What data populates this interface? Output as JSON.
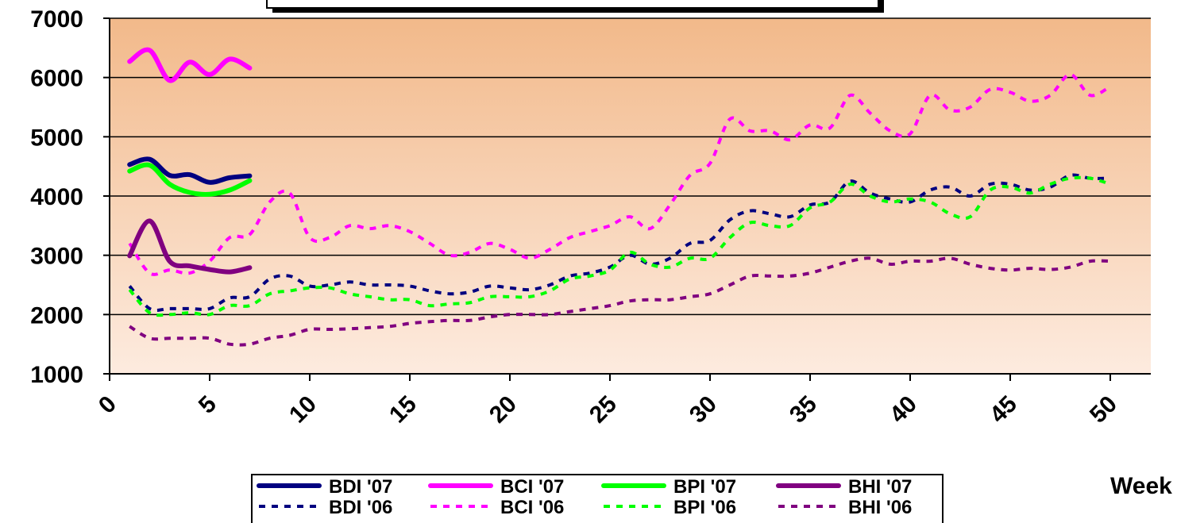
{
  "chart_data": {
    "type": "line",
    "title": "",
    "xlabel": "Week",
    "ylabel": "",
    "xlim": [
      0,
      52
    ],
    "ylim": [
      1000,
      7000
    ],
    "x_ticks": [
      "0",
      "5",
      "10",
      "15",
      "20",
      "25",
      "30",
      "35",
      "40",
      "45",
      "50"
    ],
    "y_ticks": [
      "1000",
      "2000",
      "3000",
      "4000",
      "5000",
      "6000",
      "7000"
    ],
    "grid": "horizontal",
    "legend_position": "bottom",
    "series": [
      {
        "name": "BDI '07",
        "color": "#000080",
        "style": "solid",
        "x": [
          1,
          2,
          3,
          4,
          5,
          6,
          7
        ],
        "y": [
          4530,
          4620,
          4350,
          4360,
          4230,
          4310,
          4340
        ]
      },
      {
        "name": "BCI '07",
        "color": "#ff00ff",
        "style": "solid",
        "x": [
          1,
          2,
          3,
          4,
          5,
          6,
          7
        ],
        "y": [
          6270,
          6460,
          5950,
          6260,
          6050,
          6310,
          6160
        ]
      },
      {
        "name": "BPI '07",
        "color": "#00ff00",
        "style": "solid",
        "x": [
          1,
          2,
          3,
          4,
          5,
          6,
          7
        ],
        "y": [
          4420,
          4520,
          4200,
          4060,
          4030,
          4100,
          4260
        ]
      },
      {
        "name": "BHI '07",
        "color": "#800080",
        "style": "solid",
        "x": [
          1,
          2,
          3,
          4,
          5,
          6,
          7
        ],
        "y": [
          2990,
          3580,
          2900,
          2820,
          2760,
          2720,
          2790
        ]
      },
      {
        "name": "BDI '06",
        "color": "#000080",
        "style": "dashed",
        "x": [
          1,
          2,
          3,
          4,
          5,
          6,
          7,
          8,
          9,
          10,
          11,
          12,
          13,
          14,
          15,
          16,
          17,
          18,
          19,
          20,
          21,
          22,
          23,
          24,
          25,
          26,
          27,
          28,
          29,
          30,
          31,
          32,
          33,
          34,
          35,
          36,
          37,
          38,
          39,
          40,
          41,
          42,
          43,
          44,
          45,
          46,
          47,
          48,
          49,
          50
        ],
        "y": [
          2480,
          2100,
          2100,
          2100,
          2100,
          2280,
          2300,
          2600,
          2650,
          2480,
          2500,
          2550,
          2500,
          2500,
          2480,
          2400,
          2350,
          2380,
          2480,
          2450,
          2420,
          2500,
          2650,
          2700,
          2800,
          3000,
          2850,
          2950,
          3200,
          3250,
          3600,
          3750,
          3700,
          3650,
          3850,
          3900,
          4250,
          4050,
          3950,
          3900,
          4100,
          4150,
          4000,
          4200,
          4200,
          4100,
          4150,
          4350,
          4300,
          4300
        ]
      },
      {
        "name": "BCI '06",
        "color": "#ff00ff",
        "style": "dashed",
        "x": [
          1,
          2,
          3,
          4,
          5,
          6,
          7,
          8,
          9,
          10,
          11,
          12,
          13,
          14,
          15,
          16,
          17,
          18,
          19,
          20,
          21,
          22,
          23,
          24,
          25,
          26,
          27,
          28,
          29,
          30,
          31,
          32,
          33,
          34,
          35,
          36,
          37,
          38,
          39,
          40,
          41,
          42,
          43,
          44,
          45,
          46,
          47,
          48,
          49,
          50
        ],
        "y": [
          3200,
          2700,
          2750,
          2700,
          2900,
          3300,
          3350,
          3900,
          4050,
          3300,
          3300,
          3500,
          3450,
          3500,
          3400,
          3200,
          3000,
          3050,
          3200,
          3100,
          2950,
          3100,
          3300,
          3400,
          3500,
          3650,
          3450,
          3850,
          4350,
          4550,
          5300,
          5100,
          5100,
          4950,
          5200,
          5150,
          5700,
          5400,
          5100,
          5050,
          5700,
          5450,
          5500,
          5800,
          5750,
          5600,
          5700,
          6050,
          5700,
          5850
        ]
      },
      {
        "name": "BPI '06",
        "color": "#00ff00",
        "style": "dashed",
        "x": [
          1,
          2,
          3,
          4,
          5,
          6,
          7,
          8,
          9,
          10,
          11,
          12,
          13,
          14,
          15,
          16,
          17,
          18,
          19,
          20,
          21,
          22,
          23,
          24,
          25,
          26,
          27,
          28,
          29,
          30,
          31,
          32,
          33,
          34,
          35,
          36,
          37,
          38,
          39,
          40,
          41,
          42,
          43,
          44,
          45,
          46,
          47,
          48,
          49,
          50
        ],
        "y": [
          2420,
          2030,
          2000,
          2030,
          2000,
          2150,
          2150,
          2350,
          2400,
          2450,
          2450,
          2350,
          2300,
          2250,
          2250,
          2150,
          2180,
          2200,
          2300,
          2300,
          2300,
          2400,
          2600,
          2650,
          2750,
          3050,
          2850,
          2800,
          2950,
          2950,
          3300,
          3550,
          3500,
          3500,
          3800,
          3900,
          4200,
          4000,
          3900,
          3950,
          3900,
          3700,
          3650,
          4100,
          4150,
          4050,
          4200,
          4300,
          4300,
          4200
        ]
      },
      {
        "name": "BHI '06",
        "color": "#800080",
        "style": "dashed",
        "x": [
          1,
          2,
          3,
          4,
          5,
          6,
          7,
          8,
          9,
          10,
          11,
          12,
          13,
          14,
          15,
          16,
          17,
          18,
          19,
          20,
          21,
          22,
          23,
          24,
          25,
          26,
          27,
          28,
          29,
          30,
          31,
          32,
          33,
          34,
          35,
          36,
          37,
          38,
          39,
          40,
          41,
          42,
          43,
          44,
          45,
          46,
          47,
          48,
          49,
          50
        ],
        "y": [
          1800,
          1600,
          1600,
          1600,
          1600,
          1500,
          1500,
          1600,
          1650,
          1750,
          1750,
          1760,
          1780,
          1800,
          1850,
          1880,
          1900,
          1900,
          1960,
          2000,
          2000,
          2000,
          2050,
          2100,
          2150,
          2230,
          2250,
          2250,
          2300,
          2350,
          2500,
          2650,
          2650,
          2650,
          2700,
          2800,
          2900,
          2950,
          2850,
          2900,
          2900,
          2950,
          2850,
          2780,
          2750,
          2780,
          2760,
          2800,
          2900,
          2900
        ]
      }
    ]
  }
}
